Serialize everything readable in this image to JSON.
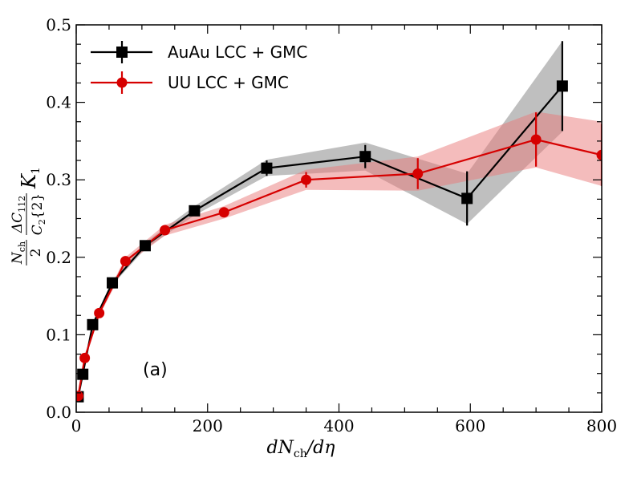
{
  "chart_data": {
    "type": "line",
    "panel_label": "(a)",
    "xlabel": "dN_ch/dη",
    "ylabel": "(N_ch/2)(ΔC_112/C_2{2}) K_1",
    "xlim": [
      0,
      800
    ],
    "ylim": [
      0.0,
      0.5
    ],
    "x_ticks": [
      "0",
      "200",
      "400",
      "600",
      "800"
    ],
    "y_ticks": [
      "0.0",
      "0.1",
      "0.2",
      "0.3",
      "0.4",
      "0.5"
    ],
    "legend_position": "top-left",
    "grid": false,
    "series": [
      {
        "name": "AuAu LCC + GMC",
        "color": "#000000",
        "band_color": "#7f7f7f",
        "marker": "square",
        "x": [
          3,
          10,
          25,
          55,
          105,
          180,
          290,
          440,
          595,
          740
        ],
        "y": [
          0.02,
          0.049,
          0.113,
          0.167,
          0.215,
          0.26,
          0.315,
          0.33,
          0.276,
          0.421
        ],
        "yerr": [
          0.003,
          0.003,
          0.004,
          0.004,
          0.004,
          0.005,
          0.01,
          0.015,
          0.035,
          0.058
        ],
        "band_low": [
          0.018,
          0.047,
          0.11,
          0.164,
          0.211,
          0.254,
          0.305,
          0.312,
          0.243,
          0.362
        ],
        "band_high": [
          0.022,
          0.052,
          0.116,
          0.17,
          0.219,
          0.266,
          0.326,
          0.348,
          0.308,
          0.479
        ]
      },
      {
        "name": "UU LCC + GMC",
        "color": "#d60000",
        "band_color": "#e97a7a",
        "marker": "circle",
        "x": [
          3,
          13,
          35,
          75,
          135,
          225,
          350,
          520,
          700,
          800
        ],
        "y": [
          0.021,
          0.07,
          0.128,
          0.195,
          0.235,
          0.258,
          0.3,
          0.308,
          0.352,
          0.332
        ],
        "yerr": [
          0.003,
          0.003,
          0.004,
          0.004,
          0.005,
          0.006,
          0.01,
          0.02,
          0.035,
          0.04
        ],
        "band_low": [
          0.018,
          0.066,
          0.124,
          0.19,
          0.228,
          0.25,
          0.287,
          0.286,
          0.316,
          0.292
        ],
        "band_high": [
          0.024,
          0.074,
          0.132,
          0.2,
          0.242,
          0.266,
          0.313,
          0.33,
          0.388,
          0.375
        ]
      }
    ]
  }
}
